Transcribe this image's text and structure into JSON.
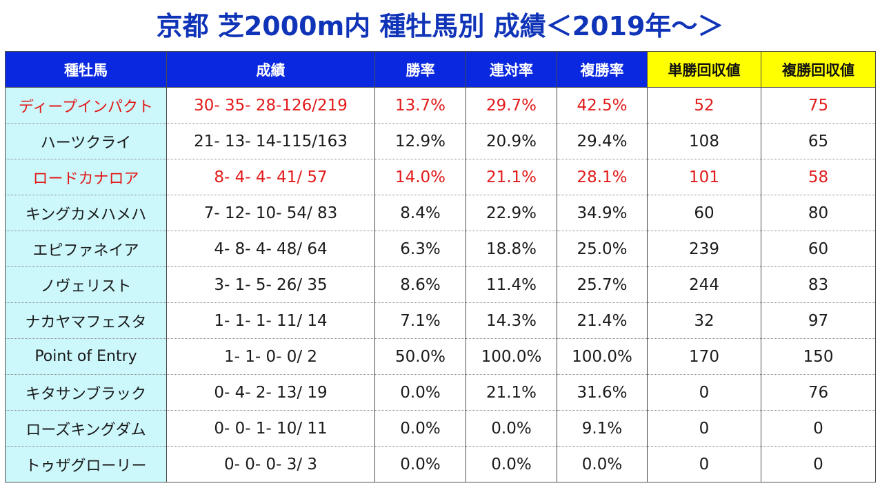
{
  "title": "京都 芝2000m内 種牡馬別 成績＜2019年～＞",
  "colors": {
    "title": "#1034b8",
    "header_bg": "#0a28e0",
    "header_highlight_bg": "#ffff00",
    "sire_column_bg": "#ccf7fb",
    "highlight_text": "#e21a1a"
  },
  "table": {
    "headers": [
      "種牡馬",
      "成績",
      "勝率",
      "連対率",
      "複勝率",
      "単勝回収値",
      "複勝回収値"
    ],
    "rows": [
      [
        "ディープインパクト",
        "30- 35- 28-126/219",
        "13.7%",
        "29.7%",
        "42.5%",
        "52",
        "75"
      ],
      [
        "ハーツクライ",
        "21- 13- 14-115/163",
        "12.9%",
        "20.9%",
        "29.4%",
        "108",
        "65"
      ],
      [
        "ロードカナロア",
        "8-  4-  4- 41/ 57",
        "14.0%",
        "21.1%",
        "28.1%",
        "101",
        "58"
      ],
      [
        "キングカメハメハ",
        "7- 12- 10- 54/ 83",
        "8.4%",
        "22.9%",
        "34.9%",
        "60",
        "80"
      ],
      [
        "エピファネイア",
        "4-  8-  4- 48/ 64",
        "6.3%",
        "18.8%",
        "25.0%",
        "239",
        "60"
      ],
      [
        "ノヴェリスト",
        "3-  1-  5- 26/ 35",
        "8.6%",
        "11.4%",
        "25.7%",
        "244",
        "83"
      ],
      [
        "ナカヤマフェスタ",
        "1-  1-  1- 11/ 14",
        "7.1%",
        "14.3%",
        "21.4%",
        "32",
        "97"
      ],
      [
        "Point of Entry",
        "1-  1-  0-  0/  2",
        "50.0%",
        "100.0%",
        "100.0%",
        "170",
        "150"
      ],
      [
        "キタサンブラック",
        "0-  4-  2- 13/ 19",
        "0.0%",
        "21.1%",
        "31.6%",
        "0",
        "76"
      ],
      [
        "ローズキングダム",
        "0-  0-  1- 10/ 11",
        "0.0%",
        "0.0%",
        "9.1%",
        "0",
        "0"
      ],
      [
        "トゥザグローリー",
        "0-  0-  0-  3/  3",
        "0.0%",
        "0.0%",
        "0.0%",
        "0",
        "0"
      ]
    ],
    "highlighted_rows": [
      0,
      2
    ]
  }
}
